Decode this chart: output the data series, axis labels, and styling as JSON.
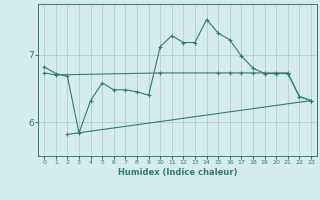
{
  "xlabel": "Humidex (Indice chaleur)",
  "background_color": "#d6ecec",
  "line_color": "#2e7d72",
  "grid_color": "#b0cece",
  "xlim": [
    -0.5,
    23.5
  ],
  "ylim": [
    5.5,
    7.75
  ],
  "yticks": [
    6,
    7
  ],
  "xticks": [
    0,
    1,
    2,
    3,
    4,
    5,
    6,
    7,
    8,
    9,
    10,
    11,
    12,
    13,
    14,
    15,
    16,
    17,
    18,
    19,
    20,
    21,
    22,
    23
  ],
  "series1_x": [
    0,
    1,
    2,
    3,
    4,
    5,
    6,
    7,
    8,
    9,
    10,
    11,
    12,
    13,
    14,
    15,
    16,
    17,
    18,
    19,
    20,
    21,
    22,
    23
  ],
  "series1_y": [
    6.82,
    6.72,
    6.68,
    5.84,
    6.32,
    6.58,
    6.48,
    6.48,
    6.45,
    6.4,
    7.12,
    7.28,
    7.18,
    7.18,
    7.52,
    7.32,
    7.22,
    6.98,
    6.8,
    6.72,
    6.72,
    6.72,
    6.38,
    6.32
  ],
  "series2_x": [
    0,
    1,
    10,
    15,
    16,
    17,
    18,
    19,
    20,
    21,
    22,
    23
  ],
  "series2_y": [
    6.73,
    6.7,
    6.73,
    6.73,
    6.73,
    6.73,
    6.73,
    6.73,
    6.73,
    6.73,
    6.38,
    6.32
  ],
  "series3_x": [
    2,
    23
  ],
  "series3_y": [
    5.82,
    6.32
  ]
}
